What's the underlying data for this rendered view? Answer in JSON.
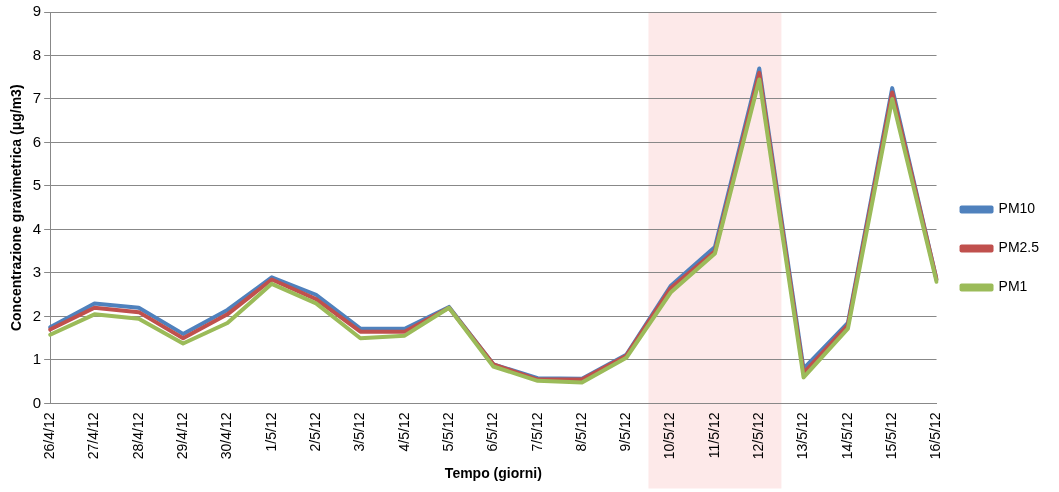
{
  "chart_data": {
    "type": "line",
    "xlabel": "Tempo (giorni)",
    "ylabel": "Concentrazione gravimetrica (μg/m3)",
    "categories": [
      "26/4/12",
      "27/4/12",
      "28/4/12",
      "29/4/12",
      "30/4/12",
      "1/5/12",
      "2/5/12",
      "3/5/12",
      "4/5/12",
      "5/5/12",
      "6/5/12",
      "7/5/12",
      "8/5/12",
      "9/5/12",
      "10/5/12",
      "11/5/12",
      "12/5/12",
      "13/5/12",
      "14/5/12",
      "15/5/12",
      "16/5/12"
    ],
    "series": [
      {
        "name": "PM10",
        "color": "#4f81bd",
        "values": [
          1.75,
          2.3,
          2.2,
          1.6,
          2.15,
          2.9,
          2.5,
          1.72,
          1.72,
          2.22,
          0.9,
          0.58,
          0.57,
          1.12,
          2.7,
          3.6,
          7.7,
          0.8,
          1.85,
          7.25,
          2.85
        ]
      },
      {
        "name": "PM2.5",
        "color": "#c0504d",
        "values": [
          1.7,
          2.2,
          2.1,
          1.5,
          2.05,
          2.85,
          2.4,
          1.65,
          1.65,
          2.2,
          0.9,
          0.55,
          0.55,
          1.1,
          2.65,
          3.5,
          7.6,
          0.7,
          1.8,
          7.15,
          2.85
        ]
      },
      {
        "name": "PM1",
        "color": "#9bbb59",
        "values": [
          1.58,
          2.05,
          1.95,
          1.38,
          1.85,
          2.75,
          2.3,
          1.5,
          1.56,
          2.2,
          0.85,
          0.52,
          0.48,
          1.05,
          2.55,
          3.45,
          7.45,
          0.6,
          1.72,
          7.0,
          2.8
        ]
      }
    ],
    "ylim": [
      0,
      9
    ],
    "yticks": [
      0,
      1,
      2,
      3,
      4,
      5,
      6,
      7,
      8,
      9
    ],
    "grid": "y",
    "legend": "right",
    "marker": "none",
    "line_style": "solid",
    "bands": [
      {
        "axis": "x",
        "from": "10/5/12",
        "to": "12/5/12",
        "color": "#fde9e9"
      }
    ]
  }
}
